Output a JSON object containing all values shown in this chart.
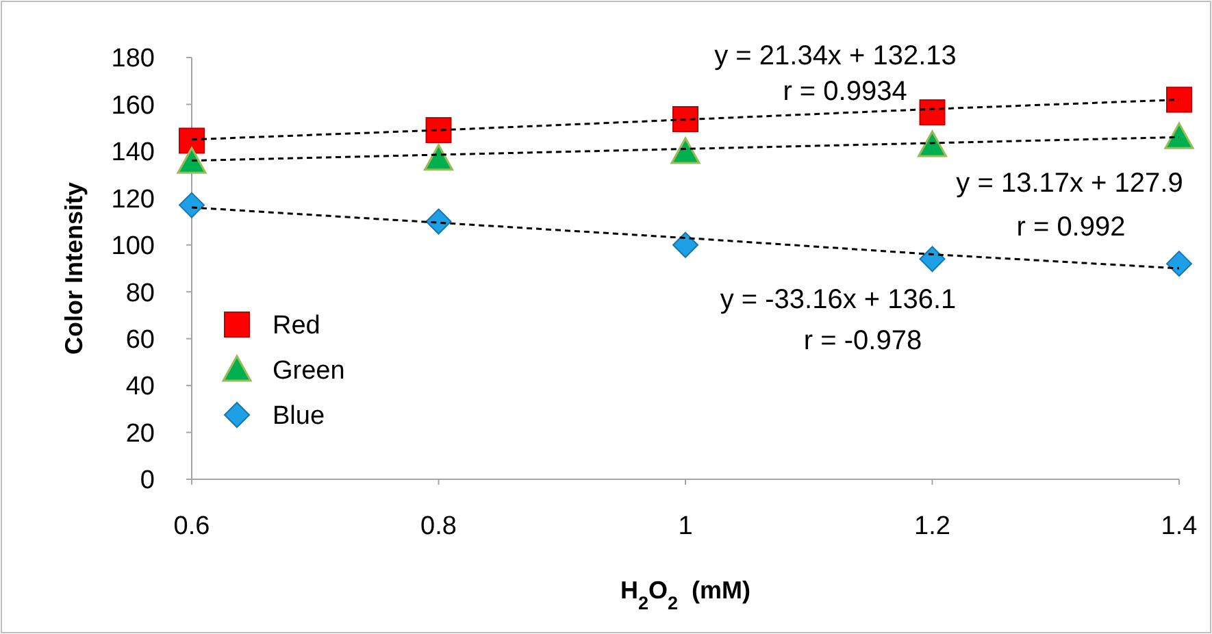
{
  "chart_data": {
    "type": "scatter",
    "xlabel": "H$_{2}$O$_{2}$  (mM)",
    "ylabel": "Color Intensity",
    "x": [
      0.6,
      0.8,
      1.0,
      1.2,
      1.4
    ],
    "series": [
      {
        "name": "Red",
        "color": "#ff0000",
        "marker": "square",
        "values": [
          144.5,
          149,
          153.7,
          156.6,
          162
        ]
      },
      {
        "name": "Green",
        "color": "#00b050",
        "marker": "triangle",
        "values": [
          135.5,
          136.8,
          139.7,
          142.6,
          146
        ]
      },
      {
        "name": "Blue",
        "color": "#1ea0e6",
        "marker": "diamond",
        "values": [
          117,
          110,
          100,
          94,
          92
        ]
      },
      {
        "type": "line",
        "color": "#000000",
        "line_style": "dashed",
        "marker": "none",
        "values": [
          145,
          149,
          153.5,
          158,
          162
        ]
      },
      {
        "type": "line",
        "color": "#000000",
        "line_style": "dashed",
        "marker": "none",
        "values": [
          136,
          138.5,
          141,
          143.5,
          146
        ]
      },
      {
        "type": "line",
        "color": "#000000",
        "line_style": "dashed",
        "marker": "none",
        "values": [
          116,
          109.5,
          103,
          96,
          90
        ]
      }
    ],
    "xlim": [
      0.6,
      1.4
    ],
    "xticks": [
      0.6,
      0.8,
      1,
      1.2,
      1.4
    ],
    "ylim": [
      0,
      180
    ],
    "yticks": [
      0,
      20,
      40,
      60,
      80,
      100,
      120,
      140,
      160,
      180
    ],
    "grid": false,
    "legend": "left",
    "annotations": [
      "y = 21.34x + 132.13",
      "r = 0.9934",
      "y = 13.17x + 127.9",
      "r = 0.992",
      "y = -33.16x + 136.1",
      "r = -0.978"
    ]
  }
}
